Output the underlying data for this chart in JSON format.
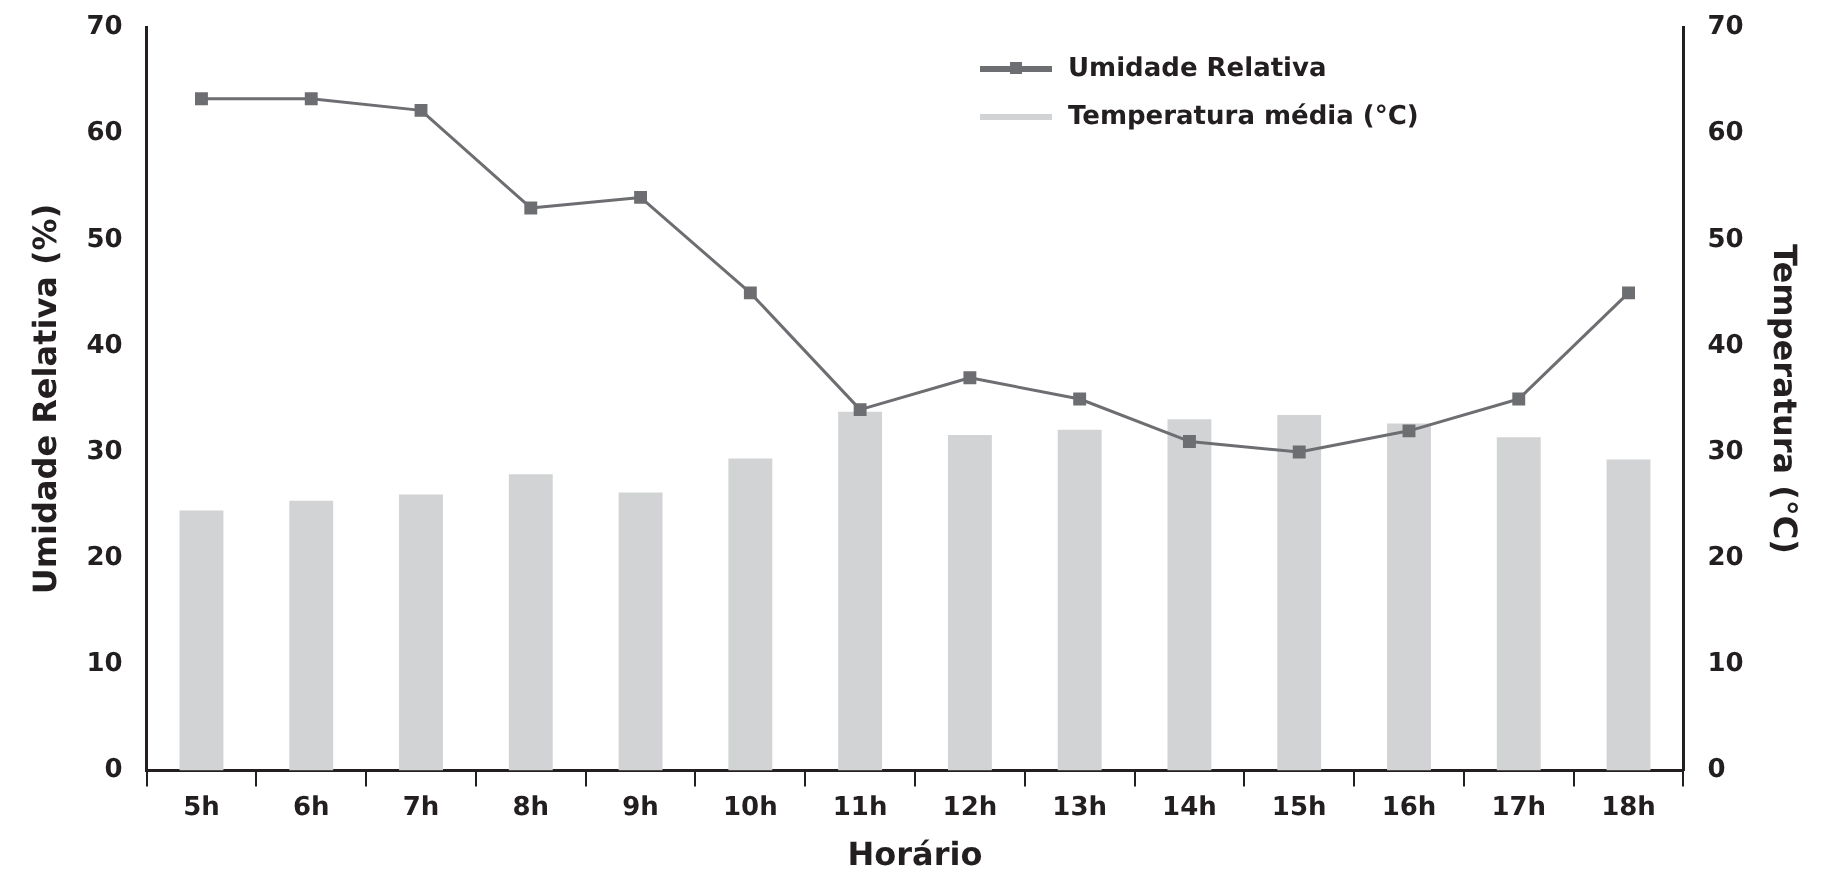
{
  "chart_data": {
    "type": "bar",
    "xlabel": "Horário",
    "ylabel": "Umidade Relativa (%)",
    "y2label": "Temperatura (°C)",
    "categories": [
      "5h",
      "6h",
      "7h",
      "8h",
      "9h",
      "10h",
      "11h",
      "12h",
      "13h",
      "14h",
      "15h",
      "16h",
      "17h",
      "18h"
    ],
    "series": [
      {
        "name": "Umidade Relativa",
        "type": "line",
        "color": "#6d6e71",
        "marker": "square",
        "values": [
          63.3,
          63.3,
          62.2,
          53,
          54,
          45,
          34,
          37,
          35,
          31,
          30,
          32,
          35,
          45
        ]
      },
      {
        "name": "Temperatura média (°C)",
        "axis": "y2",
        "color": "#d1d3d4",
        "values": [
          24.5,
          25.4,
          26.0,
          27.9,
          26.2,
          29.4,
          33.8,
          31.6,
          32.1,
          33.1,
          33.5,
          32.7,
          31.4,
          29.3
        ]
      }
    ],
    "ylim": [
      0,
      70
    ],
    "yticks": [
      0,
      10,
      20,
      30,
      40,
      50,
      60,
      70
    ],
    "y2lim": [
      0,
      70
    ],
    "y2ticks": [
      0,
      10,
      20,
      30,
      40,
      50,
      60,
      70
    ],
    "grid": false,
    "legend": "top right"
  }
}
